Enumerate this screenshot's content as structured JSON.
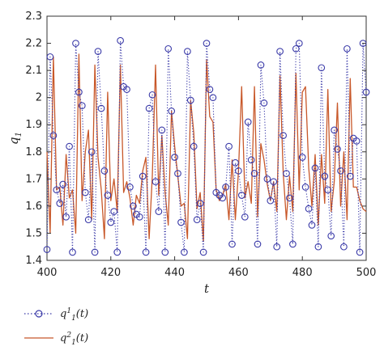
{
  "chart_data": {
    "type": "line",
    "title": "",
    "xlabel": "t",
    "ylabel": "q",
    "ylabel_subscript": "1",
    "xlim": [
      400,
      500
    ],
    "ylim": [
      1.4,
      2.3
    ],
    "xticks": [
      "400",
      "420",
      "440",
      "460",
      "480",
      "500"
    ],
    "yticks": [
      "1.4",
      "1.5",
      "1.6",
      "1.7",
      "1.8",
      "1.9",
      "2",
      "2.1",
      "2.2",
      "2.3"
    ],
    "grid": false,
    "legend_position": "below",
    "series": [
      {
        "name_base": "q",
        "name_sub": "1",
        "name_sup": "1",
        "name_arg": "(t)",
        "style": "dotted-circles",
        "color": "#3a3aa8",
        "x": [
          400,
          401,
          402,
          403,
          404,
          405,
          406,
          407,
          408,
          409,
          410,
          411,
          412,
          413,
          414,
          415,
          416,
          417,
          418,
          419,
          420,
          421,
          422,
          423,
          424,
          425,
          426,
          427,
          428,
          429,
          430,
          431,
          432,
          433,
          434,
          435,
          436,
          437,
          438,
          439,
          440,
          441,
          442,
          443,
          444,
          445,
          446,
          447,
          448,
          449,
          450,
          451,
          452,
          453,
          454,
          455,
          456,
          457,
          458,
          459,
          460,
          461,
          462,
          463,
          464,
          465,
          466,
          467,
          468,
          469,
          470,
          471,
          472,
          473,
          474,
          475,
          476,
          477,
          478,
          479,
          480,
          481,
          482,
          483,
          484,
          485,
          486,
          487,
          488,
          489,
          490,
          491,
          492,
          493,
          494,
          495,
          496,
          497,
          498,
          499,
          500
        ],
        "y": [
          1.44,
          2.15,
          1.86,
          1.66,
          1.61,
          1.68,
          1.56,
          1.82,
          1.43,
          2.2,
          2.02,
          1.97,
          1.65,
          1.55,
          1.8,
          1.43,
          2.17,
          1.96,
          1.73,
          1.64,
          1.54,
          1.58,
          1.43,
          2.21,
          2.04,
          2.03,
          1.67,
          1.6,
          1.57,
          1.56,
          1.71,
          1.43,
          1.96,
          2.01,
          1.69,
          1.58,
          1.88,
          1.43,
          2.18,
          1.95,
          1.78,
          1.72,
          1.54,
          1.43,
          2.17,
          1.99,
          1.82,
          1.55,
          1.61,
          1.43,
          2.2,
          2.03,
          2.0,
          1.65,
          1.64,
          1.63,
          1.67,
          1.82,
          1.46,
          1.76,
          1.73,
          1.64,
          1.56,
          1.91,
          1.77,
          1.72,
          1.46,
          2.12,
          1.98,
          1.7,
          1.62,
          1.69,
          1.45,
          2.17,
          1.86,
          1.72,
          1.63,
          1.46,
          2.18,
          2.2,
          1.78,
          1.67,
          1.59,
          1.53,
          1.74,
          1.45,
          2.11,
          1.71,
          1.66,
          1.49,
          1.88,
          1.81,
          1.73,
          1.45,
          2.18,
          1.71,
          1.85,
          1.84,
          1.43,
          2.2,
          2.02
        ]
      },
      {
        "name_base": "q",
        "name_sub": "1",
        "name_sup": "2",
        "name_arg": "(t)",
        "style": "solid",
        "color": "#c8582a",
        "x": [
          400,
          401,
          402,
          403,
          404,
          405,
          406,
          407,
          408,
          409,
          410,
          411,
          412,
          413,
          414,
          415,
          416,
          417,
          418,
          419,
          420,
          421,
          422,
          423,
          424,
          425,
          426,
          427,
          428,
          429,
          430,
          431,
          432,
          433,
          434,
          435,
          436,
          437,
          438,
          439,
          440,
          441,
          442,
          443,
          444,
          445,
          446,
          447,
          448,
          449,
          450,
          451,
          452,
          453,
          454,
          455,
          456,
          457,
          458,
          459,
          460,
          461,
          462,
          463,
          464,
          465,
          466,
          467,
          468,
          469,
          470,
          471,
          472,
          473,
          474,
          475,
          476,
          477,
          478,
          479,
          480,
          481,
          482,
          483,
          484,
          485,
          486,
          487,
          488,
          489,
          490,
          491,
          492,
          493,
          494,
          495,
          496,
          497,
          498,
          499,
          500
        ],
        "y": [
          1.8,
          1.5,
          2.15,
          1.66,
          1.67,
          1.53,
          1.79,
          1.63,
          1.66,
          1.5,
          2.16,
          1.62,
          1.8,
          1.88,
          1.55,
          2.12,
          1.78,
          1.66,
          1.48,
          2.02,
          1.62,
          1.7,
          1.58,
          2.12,
          1.65,
          1.69,
          1.63,
          1.53,
          1.64,
          1.61,
          1.73,
          1.78,
          1.48,
          1.71,
          2.12,
          1.64,
          1.86,
          1.65,
          1.53,
          1.95,
          1.82,
          1.71,
          1.6,
          1.61,
          1.48,
          1.99,
          1.87,
          1.59,
          1.65,
          1.47,
          2.14,
          1.93,
          1.91,
          1.66,
          1.62,
          1.64,
          1.68,
          1.55,
          1.77,
          1.55,
          1.73,
          2.04,
          1.63,
          1.69,
          1.61,
          2.04,
          1.56,
          1.83,
          1.77,
          1.68,
          1.62,
          1.69,
          1.58,
          2.08,
          1.72,
          1.55,
          1.71,
          1.58,
          2.09,
          1.66,
          2.02,
          2.04,
          1.74,
          1.6,
          1.79,
          1.53,
          1.79,
          1.61,
          2.03,
          1.58,
          1.69,
          1.98,
          1.6,
          1.8,
          1.55,
          2.07,
          1.67,
          1.67,
          1.62,
          1.59,
          1.58
        ]
      }
    ]
  }
}
